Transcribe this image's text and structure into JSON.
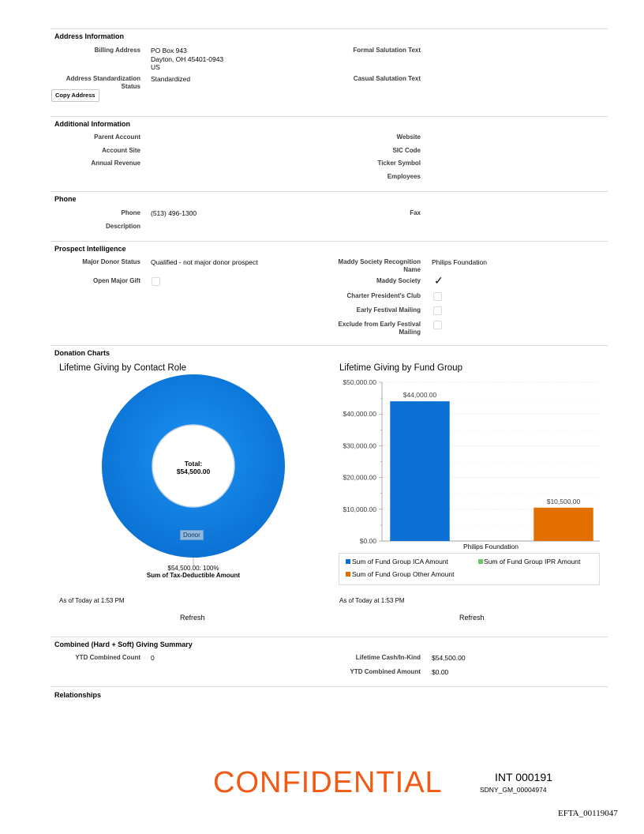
{
  "address": {
    "title": "Address Information",
    "billing_label": "Billing Address",
    "billing_line1": "PO Box 943",
    "billing_line2": "Dayton, OH 45401-0943",
    "billing_line3": "US",
    "formal_label": "Formal Salutation Text",
    "status_label": "Address Standardization Status",
    "status_value": "Standardized",
    "casual_label": "Casual Salutation Text",
    "copy_button": "Copy Address"
  },
  "additional": {
    "title": "Additional Information",
    "parent_label": "Parent Account",
    "site_label": "Account Site",
    "revenue_label": "Annual Revenue",
    "website_label": "Website",
    "sic_label": "SIC Code",
    "ticker_label": "Ticker Symbol",
    "employees_label": "Employees"
  },
  "phone": {
    "title": "Phone",
    "phone_label": "Phone",
    "phone_value": "(513) 496-1300",
    "description_label": "Description",
    "fax_label": "Fax"
  },
  "prospect": {
    "title": "Prospect Intelligence",
    "major_label": "Major Donor Status",
    "major_value": "Qualified - not major donor prospect",
    "open_gift_label": "Open Major Gift",
    "maddy_name_label_1": "Maddy Society Recognition",
    "maddy_name_label_2": "Name",
    "maddy_name_value": "Philips Foundation",
    "maddy_society_label": "Maddy Society",
    "charter_label": "Charter President's Club",
    "early_label": "Early Festival Mailing",
    "exclude_label_1": "Exclude from Early Festival",
    "exclude_label_2": "Mailing"
  },
  "charts": {
    "title": "Donation Charts",
    "as_of_left": "As of Today at 1:53 PM",
    "as_of_right": "As of Today at 1:53 PM",
    "refresh_left": "Refresh",
    "refresh_right": "Refresh"
  },
  "chart_data": [
    {
      "type": "pie",
      "title": "Lifetime Giving by Contact Role",
      "center_label_1": "Total:",
      "center_label_2": "$54,500.00",
      "slices": [
        {
          "label": "Donor",
          "value": 54500,
          "value_label": "$54,500.00: 100%"
        }
      ],
      "measure_label": "Sum of Tax-Deductible Amount",
      "color": "#1589ee"
    },
    {
      "type": "bar",
      "title": "Lifetime Giving by Fund Group",
      "categories": [
        "Philips Foundation"
      ],
      "series": [
        {
          "name": "Sum of Fund Group ICA Amount",
          "values": [
            44000
          ],
          "value_labels": [
            "$44,000.00"
          ],
          "color": "#0b6fd4"
        },
        {
          "name": "Sum of Fund Group IPR Amount",
          "values": [
            0
          ],
          "value_labels": [
            ""
          ],
          "color": "#6ec566"
        },
        {
          "name": "Sum of Fund Group Other Amount",
          "values": [
            10500
          ],
          "value_labels": [
            "$10,500.00"
          ],
          "color": "#e36f00"
        }
      ],
      "ylim": [
        0,
        50000
      ],
      "yticks": [
        0,
        10000,
        20000,
        30000,
        40000,
        50000
      ],
      "ytick_labels": [
        "$0.00",
        "$10,000.00",
        "$20,000.00",
        "$30,000.00",
        "$40,000.00",
        "$50,000.00"
      ],
      "legend_position": "bottom"
    }
  ],
  "combined": {
    "title": "Combined (Hard + Soft) Giving Summary",
    "ytd_count_label": "YTD Combined Count",
    "ytd_count_value": "0",
    "lifetime_label": "Lifetime Cash/In-Kind",
    "lifetime_value": "$54,500.00",
    "ytd_amount_label": "YTD Combined Amount",
    "ytd_amount_value": "$0.00"
  },
  "relationships": {
    "title": "Relationships"
  },
  "footer": {
    "confidential": "CONFIDENTIAL",
    "stamp_line1": "INT 000191",
    "stamp_line2": "SDNY_GM_00004974",
    "efta": "EFTA_00119047"
  }
}
